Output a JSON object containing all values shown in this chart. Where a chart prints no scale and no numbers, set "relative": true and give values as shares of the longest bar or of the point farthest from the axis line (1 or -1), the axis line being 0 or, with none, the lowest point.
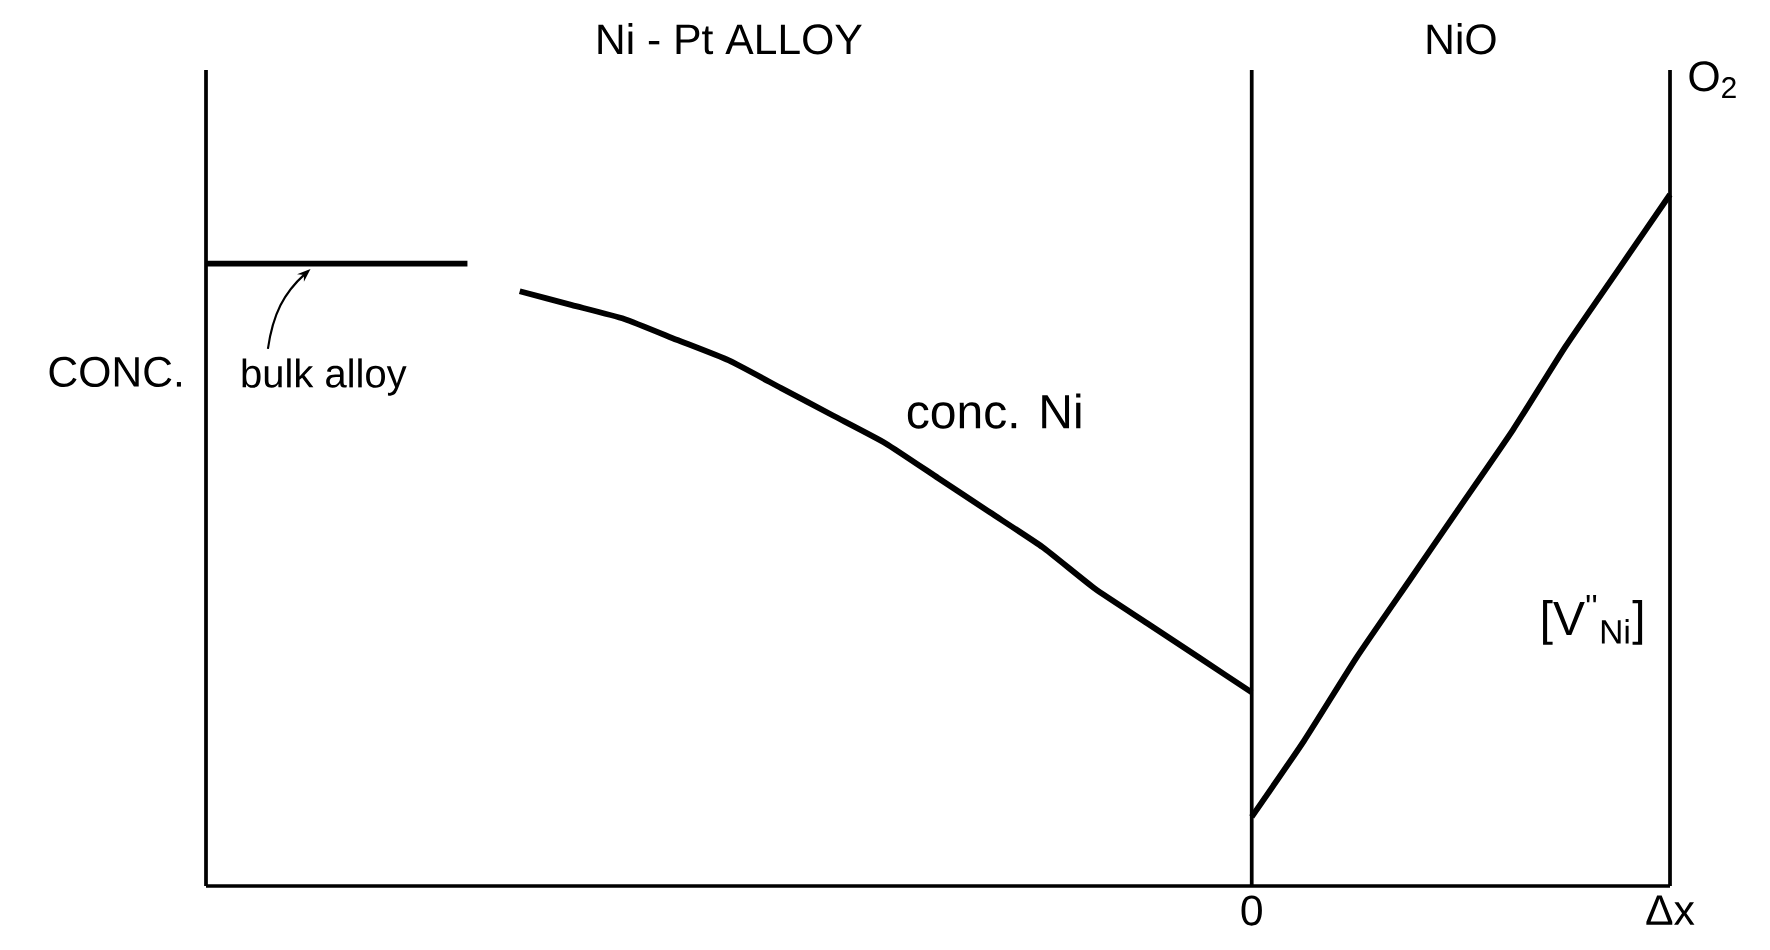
{
  "chart_data": {
    "type": "line",
    "relative": true,
    "ylabel": "CONC.",
    "tick_labels": "x",
    "categories": [
      null,
      null,
      null,
      null,
      null,
      null,
      null,
      null,
      null,
      null,
      null,
      null,
      null,
      null,
      null,
      null,
      null,
      null,
      null,
      null,
      "0",
      null,
      null,
      null,
      null,
      null,
      null,
      null,
      "Δx"
    ],
    "series": [
      {
        "values": [
          0.9,
          0.9,
          0.9,
          0.9,
          0.9,
          0.9,
          null,
          null,
          null,
          null,
          null,
          null,
          null,
          null,
          null,
          null,
          null,
          null,
          null,
          null,
          null,
          null,
          null,
          null,
          null,
          null,
          null,
          null,
          null
        ],
        "color": "#000000"
      },
      {
        "name": "conc. Ni",
        "values": [
          null,
          null,
          null,
          null,
          null,
          null,
          0.86,
          0.84,
          0.82,
          0.79,
          0.76,
          0.72,
          0.68,
          0.64,
          0.59,
          0.54,
          0.49,
          0.43,
          0.38,
          0.33,
          0.28,
          null,
          null,
          null,
          null,
          null,
          null,
          null,
          null
        ],
        "color": "#000000"
      },
      {
        "name": "[V$^{''}$$_{Ni}$]",
        "values": [
          null,
          null,
          null,
          null,
          null,
          null,
          null,
          null,
          null,
          null,
          null,
          null,
          null,
          null,
          null,
          null,
          null,
          null,
          null,
          null,
          0.1,
          0.21,
          0.33,
          0.44,
          0.55,
          0.66,
          0.78,
          0.89,
          1.0
        ],
        "color": "#000000"
      }
    ],
    "annotations": [
      "Ni - Pt ALLOY",
      "NiO",
      "O$_{2}$",
      "bulk alloy"
    ]
  }
}
